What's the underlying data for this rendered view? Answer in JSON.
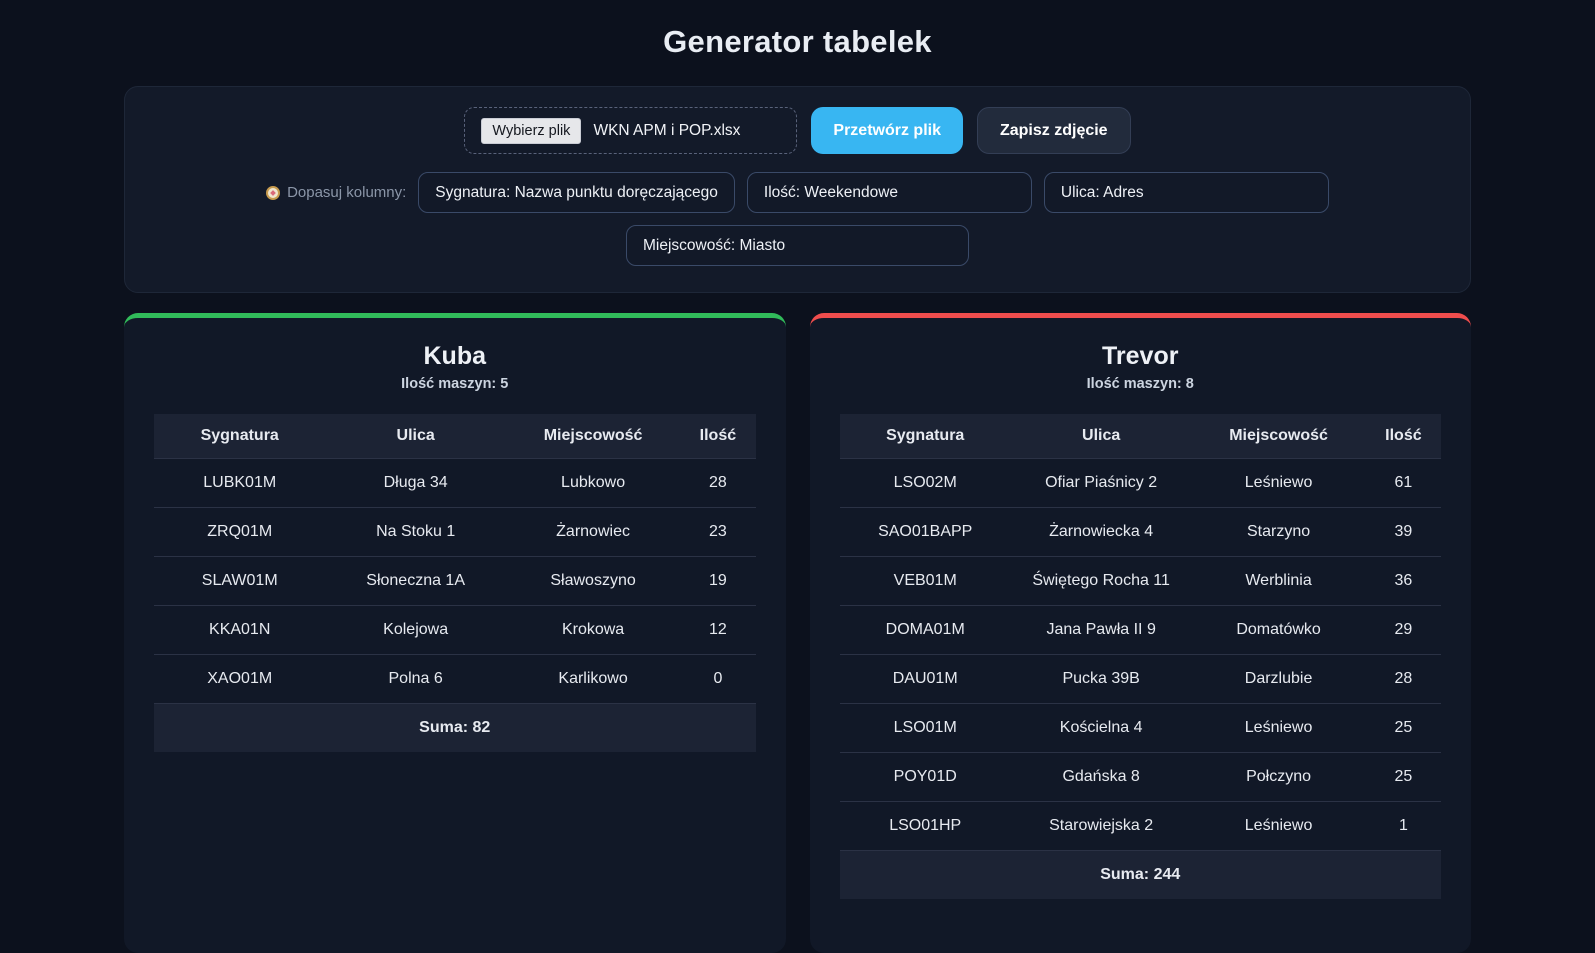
{
  "page": {
    "title": "Generator tabelek"
  },
  "uploader": {
    "choose_file_label": "Wybierz plik",
    "file_name": "WKN APM i POP.xlsx",
    "process_button": "Przetwórz plik",
    "save_image_button": "Zapisz zdjęcie",
    "map_columns_label": "Dopasuj kolumny:",
    "map_columns_icon": "compass-icon",
    "mappings": [
      "Sygnatura: Nazwa punktu doręczającego",
      "Ilość: Weekendowe",
      "Ulica: Adres",
      "Miejscowość: Miasto"
    ]
  },
  "colors": {
    "accent_blue": "#38b6f2",
    "card_green": "#31bb5a",
    "card_red": "#ef4d4d",
    "page_bg": "#0c111d",
    "card_bg": "#111827"
  },
  "cards": [
    {
      "name": "Kuba",
      "machines_label": "Ilość maszyn: 5",
      "accent_color": "#31bb5a",
      "columns": [
        "Sygnatura",
        "Ulica",
        "Miejscowość",
        "Ilość"
      ],
      "rows": [
        [
          "LUBK01M",
          "Długa 34",
          "Lubkowo",
          "28"
        ],
        [
          "ZRQ01M",
          "Na Stoku 1",
          "Żarnowiec",
          "23"
        ],
        [
          "SLAW01M",
          "Słoneczna 1A",
          "Sławoszyno",
          "19"
        ],
        [
          "KKA01N",
          "Kolejowa",
          "Krokowa",
          "12"
        ],
        [
          "XAO01M",
          "Polna 6",
          "Karlikowo",
          "0"
        ]
      ],
      "sum_label": "Suma: 82"
    },
    {
      "name": "Trevor",
      "machines_label": "Ilość maszyn: 8",
      "accent_color": "#ef4d4d",
      "columns": [
        "Sygnatura",
        "Ulica",
        "Miejscowość",
        "Ilość"
      ],
      "rows": [
        [
          "LSO02M",
          "Ofiar Piaśnicy 2",
          "Leśniewo",
          "61"
        ],
        [
          "SAO01BAPP",
          "Żarnowiecka 4",
          "Starzyno",
          "39"
        ],
        [
          "VEB01M",
          "Świętego Rocha 11",
          "Werblinia",
          "36"
        ],
        [
          "DOMA01M",
          "Jana Pawła II 9",
          "Domatówko",
          "29"
        ],
        [
          "DAU01M",
          "Pucka 39B",
          "Darzlubie",
          "28"
        ],
        [
          "LSO01M",
          "Kościelna 4",
          "Leśniewo",
          "25"
        ],
        [
          "POY01D",
          "Gdańska 8",
          "Połczyno",
          "25"
        ],
        [
          "LSO01HP",
          "Starowiejska 2",
          "Leśniewo",
          "1"
        ]
      ],
      "sum_label": "Suma: 244"
    }
  ]
}
